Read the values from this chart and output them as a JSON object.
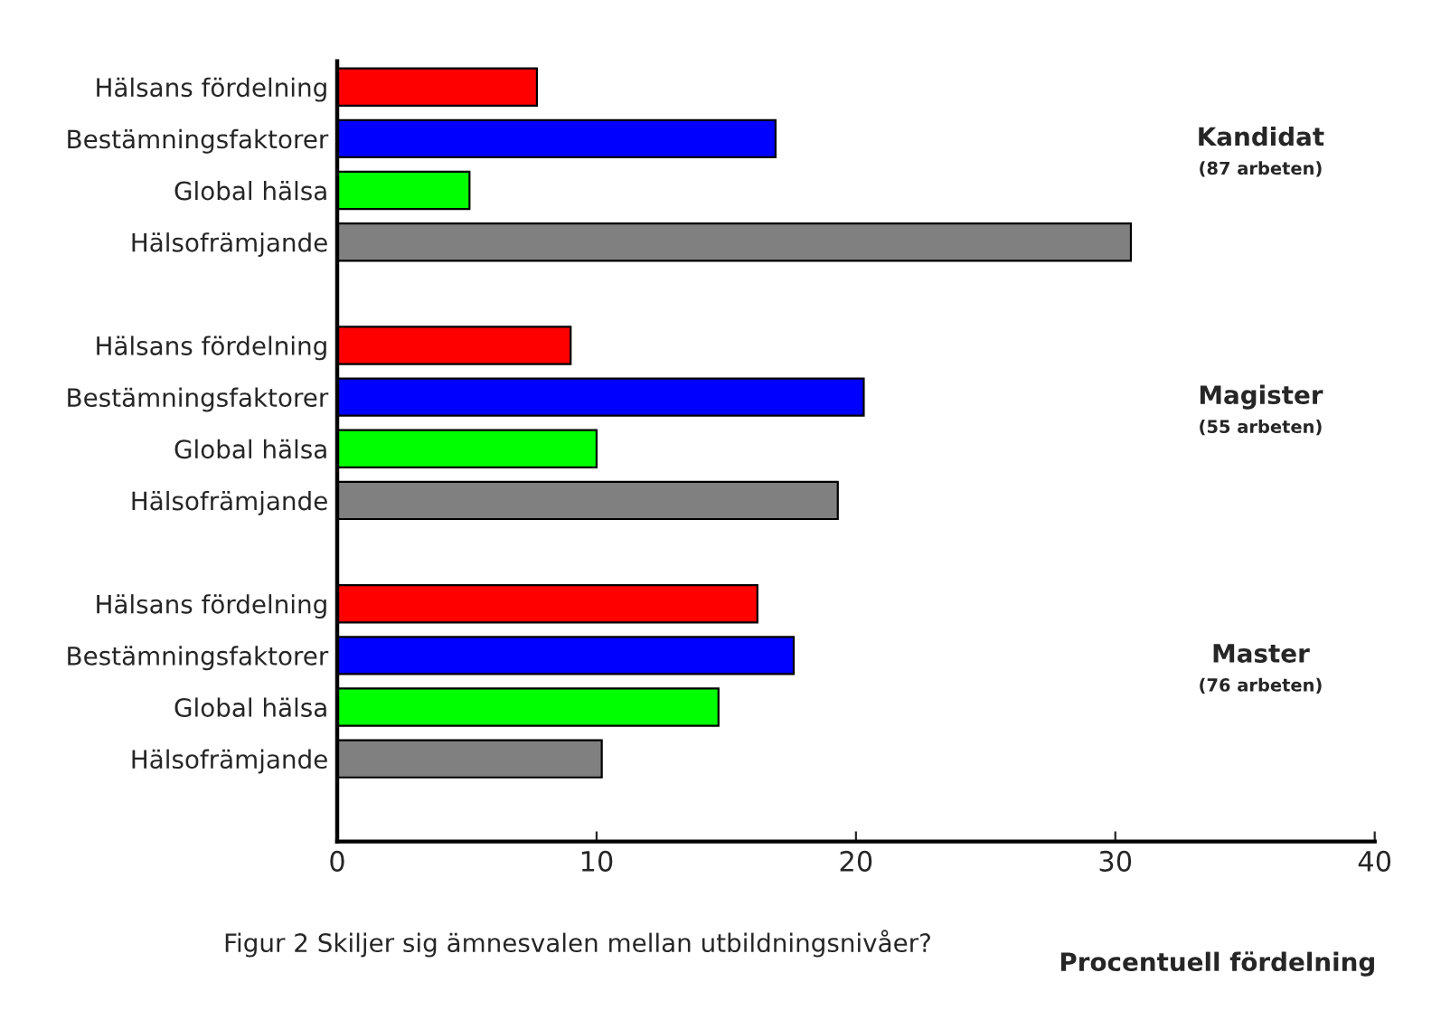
{
  "chart_data": {
    "type": "bar",
    "orientation": "horizontal",
    "categories": [
      "Hälsans fördelning",
      "Bestämningsfaktorer",
      "Global hälsa",
      "Hälsofrämjande",
      null,
      "Hälsans fördelning",
      "Bestämningsfaktorer",
      "Global hälsa",
      "Hälsofrämjande",
      null,
      "Hälsans fördelning",
      "Bestämningsfaktorer",
      "Global hälsa",
      "Hälsofrämjande",
      null
    ],
    "values": [
      7.7,
      16.9,
      5.1,
      30.6,
      null,
      9.0,
      20.3,
      10.0,
      19.3,
      null,
      16.2,
      17.6,
      14.7,
      10.2,
      null
    ],
    "colors": [
      "#ff0000",
      "#0000ff",
      "#00ff00",
      "#808080",
      "#ffffff",
      "#ff0000",
      "#0000ff",
      "#00ff00",
      "#808080",
      "#ffffff",
      "#ff0000",
      "#0000ff",
      "#00ff00",
      "#808080",
      "#ffffff"
    ],
    "xlim": [
      0,
      40
    ],
    "xticks": [
      0,
      10,
      20,
      30,
      40
    ],
    "xlabel": "Procentuell fördelning",
    "annotations": [
      "Kandidat",
      "(87 arbeten)",
      "Magister",
      "(55 arbeten)",
      "Master",
      "(76 arbeten)",
      "Figur 2 Skiljer sig ämnesvalen mellan utbildningsnivåer?"
    ],
    "grid": false,
    "legend": false
  }
}
